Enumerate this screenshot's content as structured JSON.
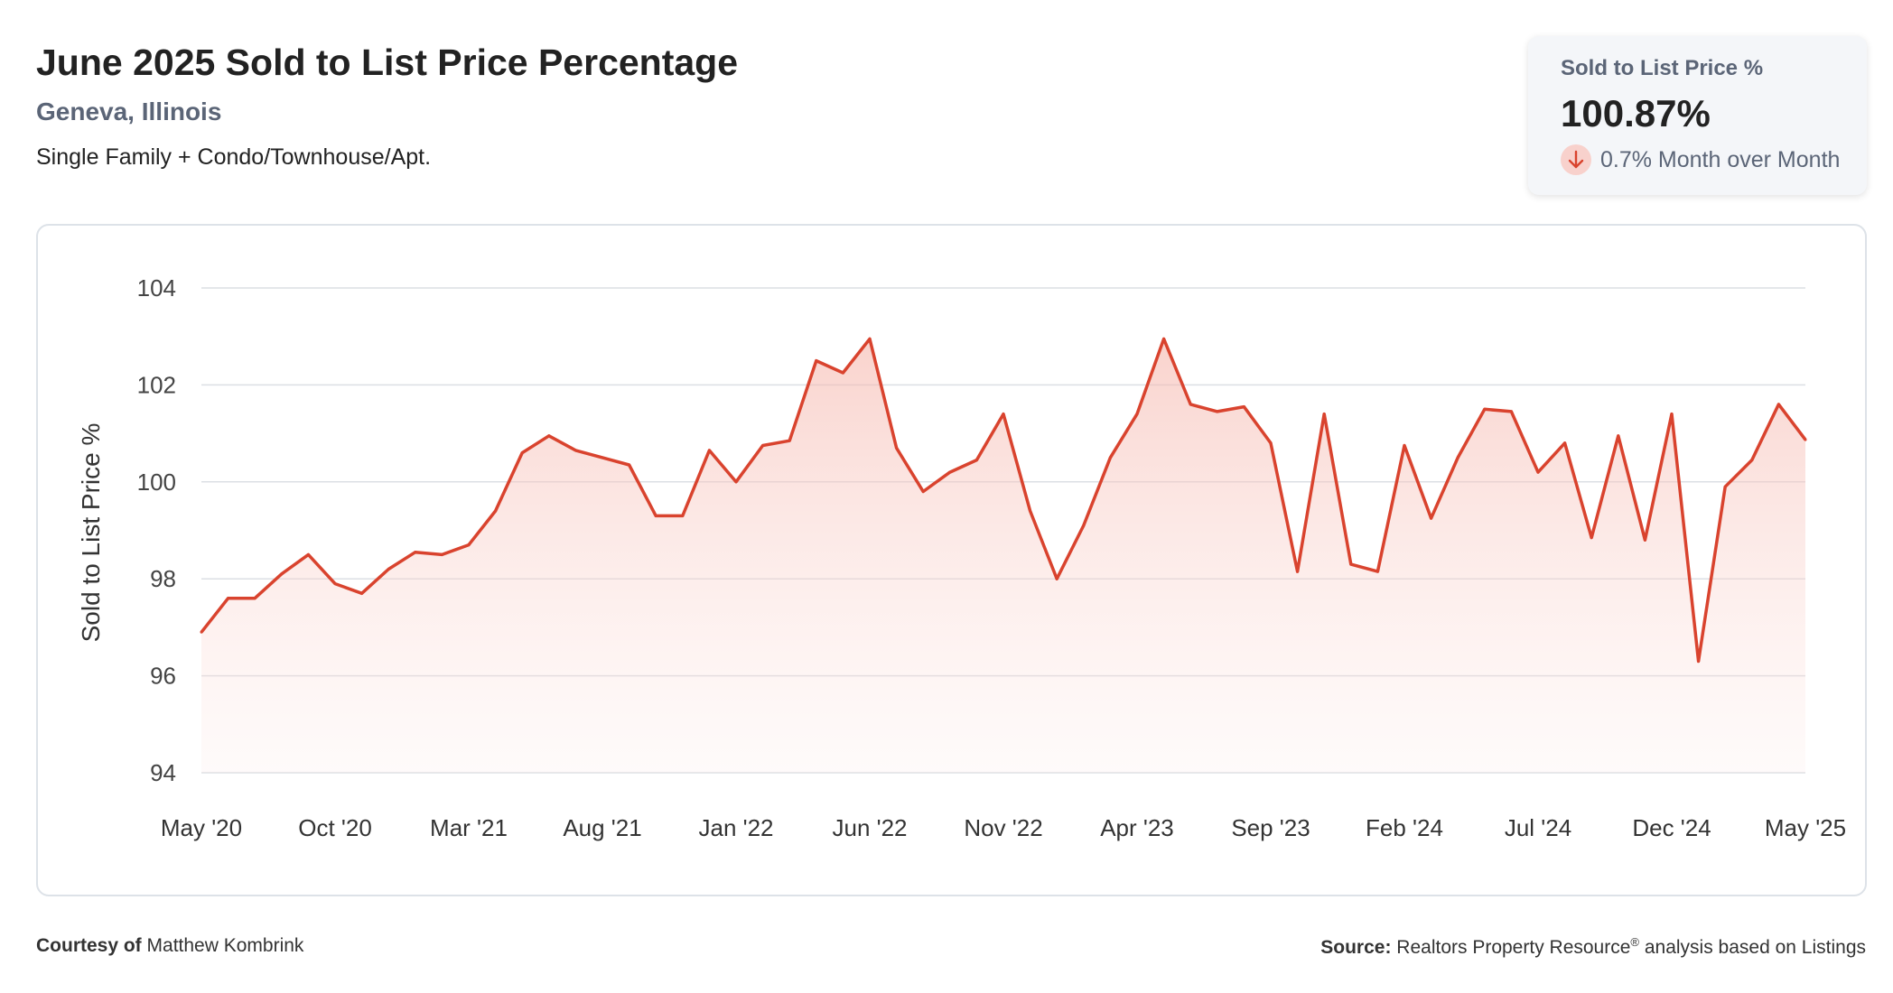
{
  "header": {
    "title": "June 2025 Sold to List Price Percentage",
    "location": "Geneva, Illinois",
    "subtitle": "Single Family + Condo/Townhouse/Apt."
  },
  "kpi": {
    "label": "Sold to List Price %",
    "value": "100.87%",
    "change": "0.7% Month over Month",
    "direction_icon": "arrow-down-icon",
    "change_color": "#d9432e"
  },
  "footer": {
    "courtesy_label": "Courtesy of",
    "courtesy_name": "Matthew Kombrink",
    "source_label": "Source:",
    "source_name": "Realtors Property Resource",
    "source_mark": "®",
    "source_rest": "analysis based on Listings"
  },
  "chart_data": {
    "type": "area",
    "ylabel": "Sold to List Price %",
    "ylim": [
      94,
      104
    ],
    "yticks": [
      94,
      96,
      98,
      100,
      102,
      104
    ],
    "grid": true,
    "line_color": "#d9432e",
    "x": [
      "May '20",
      "Jun '20",
      "Jul '20",
      "Aug '20",
      "Sep '20",
      "Oct '20",
      "Nov '20",
      "Dec '20",
      "Jan '21",
      "Feb '21",
      "Mar '21",
      "Apr '21",
      "May '21",
      "Jun '21",
      "Jul '21",
      "Aug '21",
      "Sep '21",
      "Oct '21",
      "Nov '21",
      "Dec '21",
      "Jan '22",
      "Feb '22",
      "Mar '22",
      "Apr '22",
      "May '22",
      "Jun '22",
      "Jul '22",
      "Aug '22",
      "Sep '22",
      "Oct '22",
      "Nov '22",
      "Dec '22",
      "Jan '23",
      "Feb '23",
      "Mar '23",
      "Apr '23",
      "May '23",
      "Jun '23",
      "Jul '23",
      "Aug '23",
      "Sep '23",
      "Oct '23",
      "Nov '23",
      "Dec '23",
      "Jan '24",
      "Feb '24",
      "Mar '24",
      "Apr '24",
      "May '24",
      "Jun '24",
      "Jul '24",
      "Aug '24",
      "Sep '24",
      "Oct '24",
      "Nov '24",
      "Dec '24",
      "Jan '25",
      "Feb '25",
      "Mar '25",
      "Apr '25",
      "May '25"
    ],
    "xtick_labels": [
      "May '20",
      "Oct '20",
      "Mar '21",
      "Aug '21",
      "Jan '22",
      "Jun '22",
      "Nov '22",
      "Apr '23",
      "Sep '23",
      "Feb '24",
      "Jul '24",
      "Dec '24",
      "May '25"
    ],
    "series": [
      {
        "values": [
          96.9,
          97.6,
          97.6,
          98.1,
          98.5,
          97.9,
          97.7,
          98.2,
          98.55,
          98.5,
          98.7,
          99.4,
          100.6,
          100.95,
          100.65,
          100.5,
          100.35,
          99.3,
          99.3,
          100.65,
          100.0,
          100.75,
          100.85,
          102.5,
          102.25,
          102.95,
          100.7,
          99.8,
          100.2,
          100.45,
          101.4,
          99.4,
          98.0,
          99.1,
          100.5,
          101.4,
          102.95,
          101.6,
          101.45,
          101.55,
          100.8,
          98.15,
          101.4,
          98.3,
          98.15,
          100.75,
          99.25,
          100.5,
          101.5,
          101.45,
          100.2,
          100.8,
          98.85,
          100.95,
          98.8,
          101.4,
          96.3,
          99.9,
          100.45,
          101.6,
          100.87
        ]
      }
    ]
  }
}
